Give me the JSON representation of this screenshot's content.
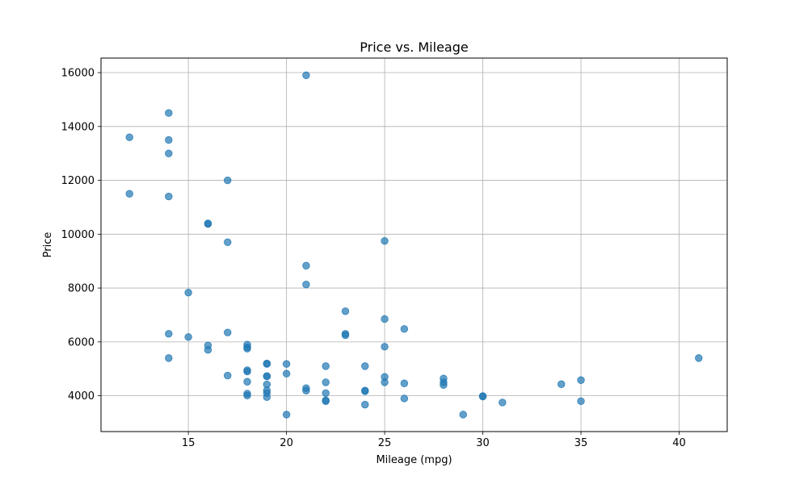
{
  "chart_data": {
    "type": "scatter",
    "title": "Price vs. Mileage",
    "xlabel": "Mileage (mpg)",
    "ylabel": "Price",
    "xlim": [
      10.55,
      42.45
    ],
    "ylim": [
      2670,
      16540
    ],
    "xticks": [
      15,
      20,
      25,
      30,
      35,
      40
    ],
    "yticks": [
      4000,
      6000,
      8000,
      10000,
      12000,
      14000,
      16000
    ],
    "grid": true,
    "color": "#1f77b4",
    "points": [
      {
        "x": 12,
        "y": 13600
      },
      {
        "x": 12,
        "y": 11500
      },
      {
        "x": 14,
        "y": 14500
      },
      {
        "x": 14,
        "y": 13500
      },
      {
        "x": 14,
        "y": 13000
      },
      {
        "x": 14,
        "y": 11400
      },
      {
        "x": 14,
        "y": 6300
      },
      {
        "x": 14,
        "y": 5400
      },
      {
        "x": 15,
        "y": 7830
      },
      {
        "x": 15,
        "y": 6180
      },
      {
        "x": 16,
        "y": 10400
      },
      {
        "x": 16,
        "y": 10380
      },
      {
        "x": 16,
        "y": 5870
      },
      {
        "x": 16,
        "y": 5700
      },
      {
        "x": 17,
        "y": 12000
      },
      {
        "x": 17,
        "y": 9700
      },
      {
        "x": 17,
        "y": 6350
      },
      {
        "x": 17,
        "y": 4750
      },
      {
        "x": 18,
        "y": 5900
      },
      {
        "x": 18,
        "y": 5800
      },
      {
        "x": 18,
        "y": 5750
      },
      {
        "x": 18,
        "y": 4950
      },
      {
        "x": 18,
        "y": 4900
      },
      {
        "x": 18,
        "y": 4520
      },
      {
        "x": 18,
        "y": 4080
      },
      {
        "x": 18,
        "y": 4010
      },
      {
        "x": 19,
        "y": 5200
      },
      {
        "x": 19,
        "y": 5180
      },
      {
        "x": 19,
        "y": 4730
      },
      {
        "x": 19,
        "y": 4720
      },
      {
        "x": 19,
        "y": 4420
      },
      {
        "x": 19,
        "y": 4200
      },
      {
        "x": 19,
        "y": 4100
      },
      {
        "x": 19,
        "y": 3950
      },
      {
        "x": 20,
        "y": 5180
      },
      {
        "x": 20,
        "y": 4820
      },
      {
        "x": 20,
        "y": 3300
      },
      {
        "x": 21,
        "y": 15900
      },
      {
        "x": 21,
        "y": 8830
      },
      {
        "x": 21,
        "y": 8130
      },
      {
        "x": 21,
        "y": 4280
      },
      {
        "x": 21,
        "y": 4190
      },
      {
        "x": 22,
        "y": 5100
      },
      {
        "x": 22,
        "y": 4500
      },
      {
        "x": 22,
        "y": 4100
      },
      {
        "x": 22,
        "y": 3830
      },
      {
        "x": 22,
        "y": 3800
      },
      {
        "x": 23,
        "y": 7140
      },
      {
        "x": 23,
        "y": 6300
      },
      {
        "x": 23,
        "y": 6250
      },
      {
        "x": 24,
        "y": 5100
      },
      {
        "x": 24,
        "y": 4190
      },
      {
        "x": 24,
        "y": 4170
      },
      {
        "x": 24,
        "y": 3670
      },
      {
        "x": 25,
        "y": 9750
      },
      {
        "x": 25,
        "y": 6850
      },
      {
        "x": 25,
        "y": 5820
      },
      {
        "x": 25,
        "y": 4700
      },
      {
        "x": 25,
        "y": 4500
      },
      {
        "x": 26,
        "y": 6480
      },
      {
        "x": 26,
        "y": 4460
      },
      {
        "x": 26,
        "y": 3900
      },
      {
        "x": 28,
        "y": 4640
      },
      {
        "x": 28,
        "y": 4500
      },
      {
        "x": 28,
        "y": 4400
      },
      {
        "x": 29,
        "y": 3300
      },
      {
        "x": 30,
        "y": 3990
      },
      {
        "x": 30,
        "y": 3970
      },
      {
        "x": 31,
        "y": 3750
      },
      {
        "x": 34,
        "y": 4430
      },
      {
        "x": 35,
        "y": 4580
      },
      {
        "x": 35,
        "y": 3800
      },
      {
        "x": 41,
        "y": 5400
      }
    ]
  }
}
